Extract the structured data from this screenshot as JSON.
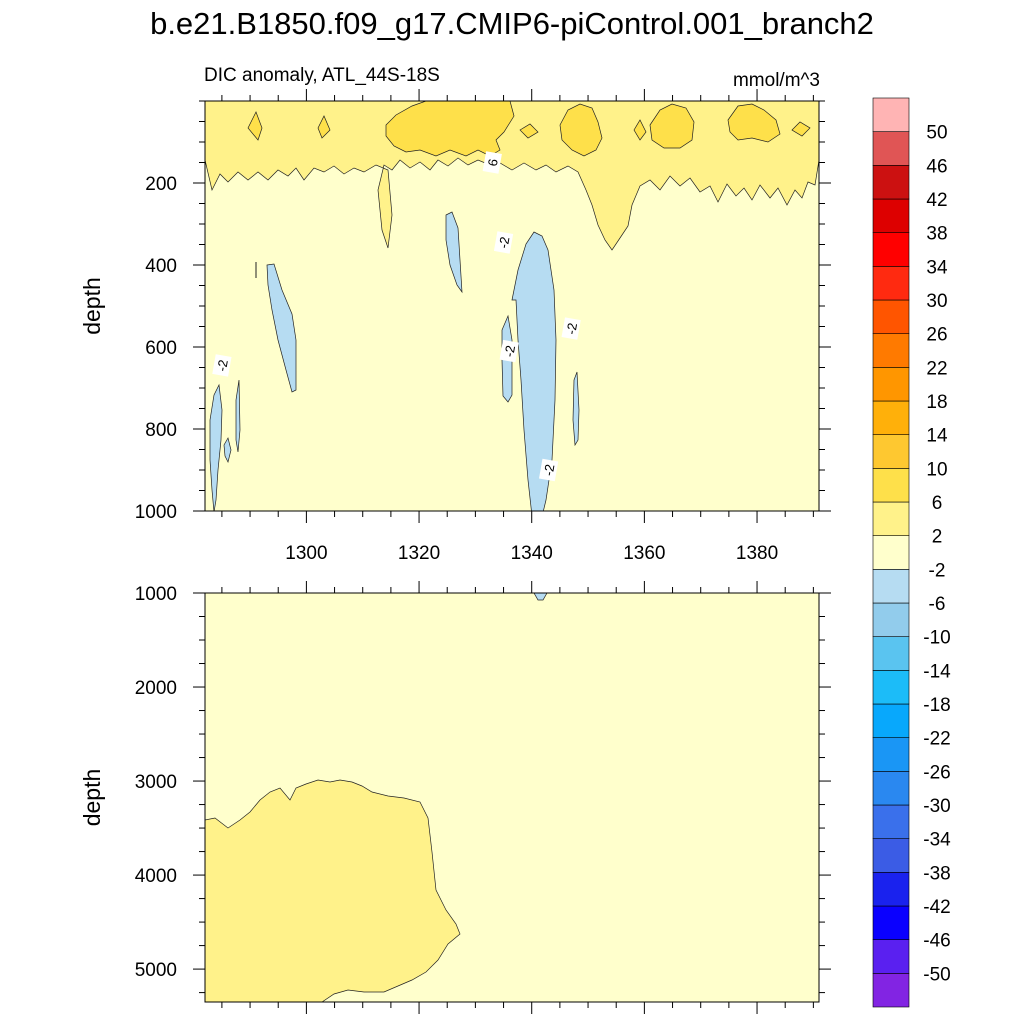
{
  "title": "b.e21.B1850.f09_g17.CMIP6-piControl.001_branch2",
  "chart_data": {
    "type": "heatmap",
    "subtitle_left": "DIC anomaly, ATL_44S-18S",
    "units": "mmol/m^3",
    "x_ticks": [
      1300,
      1320,
      1340,
      1360,
      1380
    ],
    "x_range": [
      1282,
      1391
    ],
    "panels": [
      {
        "name": "upper",
        "ylabel": "depth",
        "y_range": [
          0,
          1000
        ],
        "y_ticks": [
          200,
          400,
          600,
          800,
          1000
        ],
        "y_tick_labels": [
          "200",
          "400",
          "600",
          "800",
          "1000"
        ],
        "contour_labels": [
          {
            "text": "6",
            "x": 1333,
            "depth": 150
          },
          {
            "text": "-2",
            "x": 1335,
            "depth": 345
          },
          {
            "text": "-2",
            "x": 1336,
            "depth": 610
          },
          {
            "text": "-2",
            "x": 1347,
            "depth": 555
          },
          {
            "text": "-2",
            "x": 1285,
            "depth": 645
          },
          {
            "text": "-2",
            "x": 1343,
            "depth": 900
          }
        ]
      },
      {
        "name": "lower",
        "ylabel": "depth",
        "y_range": [
          1000,
          5350
        ],
        "y_ticks": [
          1000,
          2000,
          3000,
          4000,
          5000
        ],
        "y_tick_labels": [
          "1000",
          "2000",
          "3000",
          "4000",
          "5000"
        ],
        "contour_labels": []
      }
    ],
    "colorbar": {
      "levels": [
        -50,
        -46,
        -42,
        -38,
        -34,
        -30,
        -26,
        -22,
        -18,
        -14,
        -10,
        -6,
        -2,
        2,
        6,
        10,
        14,
        18,
        22,
        26,
        30,
        34,
        38,
        42,
        46,
        50
      ],
      "labels": [
        "-50",
        "-46",
        "-42",
        "-38",
        "-34",
        "-30",
        "-26",
        "-22",
        "-18",
        "-14",
        "-10",
        "-6",
        "-2",
        "2",
        "6",
        "10",
        "14",
        "18",
        "22",
        "26",
        "30",
        "34",
        "38",
        "42",
        "46",
        "50"
      ],
      "colors": [
        "#8224e3",
        "#5a20f0",
        "#0a00ff",
        "#1a22ee",
        "#3b5ce5",
        "#3a70eb",
        "#2a88f0",
        "#1a96f5",
        "#08a8fc",
        "#1cbcf8",
        "#5ac4f0",
        "#92ccec",
        "#b6dcf2",
        "#ffffcc",
        "#fff28a",
        "#fee04a",
        "#fec830",
        "#ffb00a",
        "#ff9600",
        "#ff7a00",
        "#ff5500",
        "#ff2a10",
        "#ff0000",
        "#dd0000",
        "#cc1111",
        "#e05555",
        "#ffb4b4"
      ]
    },
    "colors": {
      "neutral": "#ffffcc",
      "pos2": "#fff28a",
      "pos6": "#fee04a",
      "neg2": "#b6dcf2"
    }
  }
}
